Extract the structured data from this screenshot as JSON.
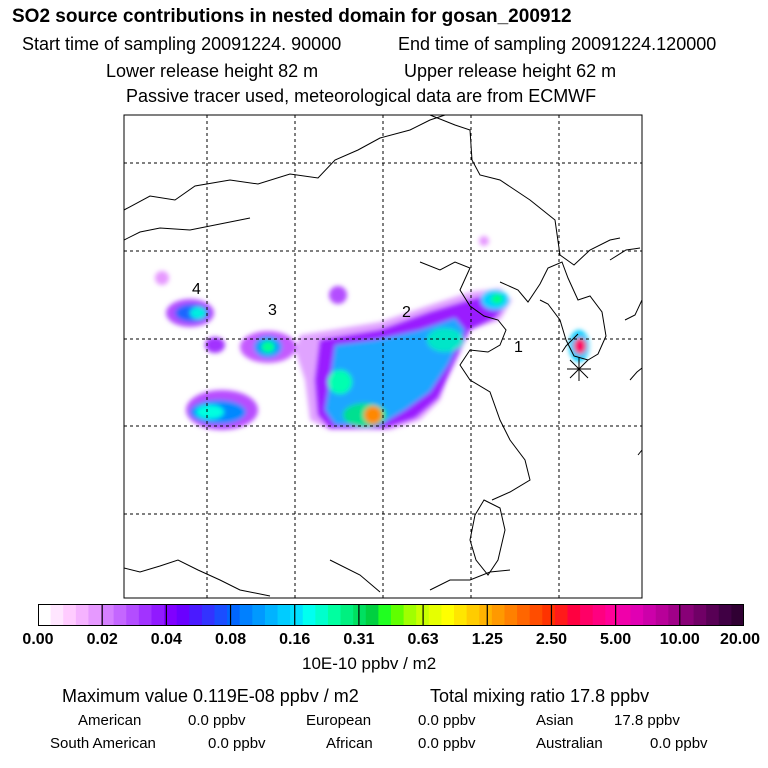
{
  "header": {
    "title": "SO2 source contributions in nested domain for gosan_200912",
    "start_sampling": "Start time of sampling 20091224. 90000",
    "end_sampling": "End time of sampling 20091224.120000",
    "lower_release": "Lower release height   82 m",
    "upper_release": "Upper release height   62 m",
    "tracer_note": "Passive tracer used, meteorological data are from ECMWF"
  },
  "chart_data": {
    "type": "heatmap",
    "title": "SO2 source contributions in nested domain for gosan_200912",
    "source_labels": [
      "1",
      "2",
      "3",
      "4"
    ],
    "colorbar": {
      "tick_labels": [
        "0.00",
        "0.02",
        "0.04",
        "0.08",
        "0.16",
        "0.31",
        "0.63",
        "1.25",
        "2.50",
        "5.00",
        "10.00",
        "20.00"
      ],
      "unit_label": "10E-10 ppbv / m2",
      "colors": [
        "#ffffff",
        "#ffe6ff",
        "#ffccff",
        "#f5b3ff",
        "#e699ff",
        "#d580ff",
        "#c466ff",
        "#b34dff",
        "#a233ff",
        "#911aff",
        "#8000ff",
        "#6a00ff",
        "#4a1aff",
        "#3333ff",
        "#1a4dff",
        "#0066ff",
        "#0080ff",
        "#0099ff",
        "#00b3ff",
        "#00ccff",
        "#00e0ff",
        "#00fff0",
        "#00ffcc",
        "#00ffa0",
        "#00f080",
        "#00e060",
        "#00d040",
        "#20ff20",
        "#60ff00",
        "#a0ff00",
        "#c8ff00",
        "#e6ff00",
        "#ffff00",
        "#ffe600",
        "#ffcc00",
        "#ffb300",
        "#ff9900",
        "#ff8000",
        "#ff6600",
        "#ff4d00",
        "#ff3300",
        "#ff1a1a",
        "#ff0040",
        "#ff0066",
        "#ff0080",
        "#ff0099",
        "#f000aa",
        "#e000b3",
        "#cc00aa",
        "#b80099",
        "#a00088",
        "#880077",
        "#700066",
        "#580055",
        "#400044",
        "#300033"
      ]
    },
    "grid": true
  },
  "footer": {
    "max_value": "Maximum value  0.119E-08 ppbv / m2",
    "total_mixing": "Total mixing ratio       17.8 ppbv",
    "regions": [
      {
        "name": "American",
        "value": "0.0 ppbv"
      },
      {
        "name": "European",
        "value": "0.0 ppbv"
      },
      {
        "name": "Asian",
        "value": "17.8 ppbv"
      },
      {
        "name": "South American",
        "value": "0.0 ppbv"
      },
      {
        "name": "African",
        "value": "0.0 ppbv"
      },
      {
        "name": "Australian",
        "value": "0.0 ppbv"
      }
    ]
  }
}
